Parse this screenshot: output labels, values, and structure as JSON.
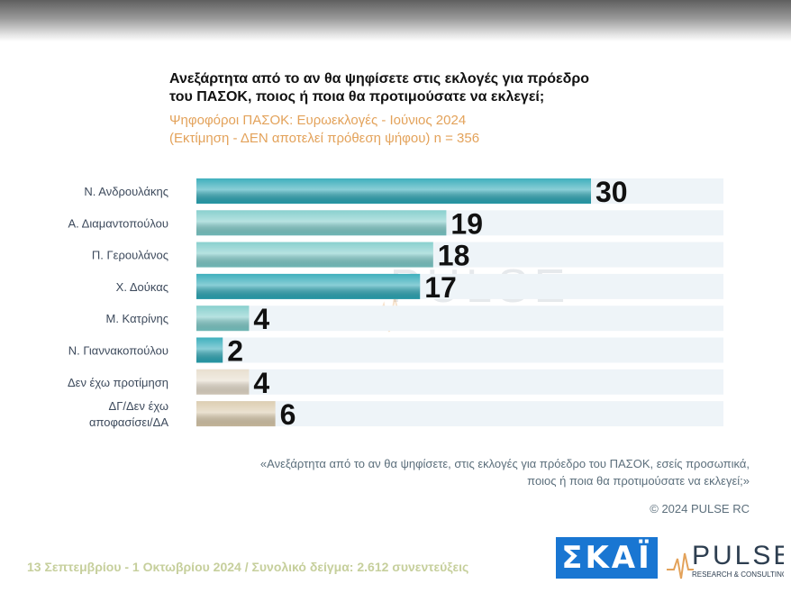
{
  "chart_data": {
    "type": "bar",
    "orientation": "horizontal",
    "title": "Ανεξάρτητα από το αν θα ψηφίσετε στις εκλογές για πρόεδρο\nτου ΠΑΣΟΚ, ποιος ή ποια θα προτιμούσατε να εκλεγεί;",
    "title_lines": [
      "Ανεξάρτητα από το αν θα ψηφίσετε στις εκλογές για πρόεδρο",
      "του ΠΑΣΟΚ, ποιος ή ποια θα προτιμούσατε να εκλεγεί;"
    ],
    "subtitle_lines": [
      "Ψηφοφόροι ΠΑΣΟΚ: Ευρωεκλογές - Ιούνιος 2024",
      "(Εκτίμηση - ΔΕΝ αποτελεί πρόθεση ψήφου)   n = 356"
    ],
    "categories": [
      "Ν. Ανδρουλάκης",
      "Α. Διαμαντοπούλου",
      "Π. Γερουλάνος",
      "Χ. Δούκας",
      "Μ. Κατρίνης",
      "Ν. Γιαννακοπούλου",
      "Δεν έχω προτίμηση",
      "ΔΓ/Δεν έχω αποφασίσει/ΔΑ"
    ],
    "category_lines": [
      [
        "Ν. Ανδρουλάκης"
      ],
      [
        "Α. Διαμαντοπούλου"
      ],
      [
        "Π. Γερουλάνος"
      ],
      [
        "Χ. Δούκας"
      ],
      [
        "Μ. Κατρίνης"
      ],
      [
        "Ν. Γιαννακοπούλου"
      ],
      [
        "Δεν έχω προτίμηση"
      ],
      [
        "ΔΓ/Δεν έχω",
        "αποφασίσει/ΔΑ"
      ]
    ],
    "values": [
      30,
      19,
      18,
      17,
      4,
      2,
      4,
      6
    ],
    "xlim": [
      0,
      30
    ],
    "bar_colors": [
      "#2aa7b6",
      "#7ccbc9",
      "#7ccbc9",
      "#2aa7b6",
      "#7ccbc9",
      "#2aa7b6",
      "#e6dccb",
      "#d9c9aa"
    ],
    "grid": false,
    "legend": "none"
  },
  "watermark": {
    "brand": "PULSE",
    "tagline": "RESEARCH & CONSULTING"
  },
  "note_lines": [
    "«Ανεξάρτητα από το αν θα ψηφίσετε, στις εκλογές για πρόεδρο του ΠΑΣΟΚ, εσείς προσωπικά,",
    "ποιος ή ποια θα προτιμούσατε να εκλεγεί;»"
  ],
  "copyright": "© 2024 PULSE RC",
  "footer_text": "13 Σεπτεμβρίου - 1 Οκτωβρίου 2024  /  Συνολικό δείγμα:  2.612 συνεντεύξεις",
  "logos": {
    "skai": "ΣΚΑΪ",
    "pulse": "PULSE",
    "pulse_tagline": "RESEARCH & CONSULTING"
  }
}
